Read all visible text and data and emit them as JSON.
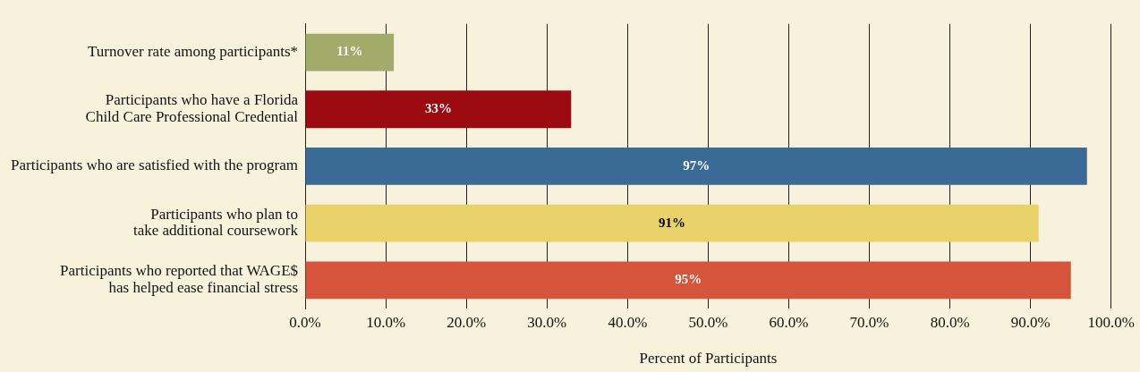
{
  "chart_data": {
    "type": "bar",
    "orientation": "horizontal",
    "xlabel": "Percent of Participants",
    "categories": [
      "Turnover rate among participants*",
      "Participants who have a Florida Child Care Professional Credential",
      "Participants who are satisfied with the program",
      "Participants who plan to take additional coursework",
      "Participants who reported that WAGE$ has helped ease financial stress"
    ],
    "values": [
      11,
      33,
      97,
      91,
      95
    ],
    "colors": [
      "#a3ab6a",
      "#9b0a10",
      "#3a6b96",
      "#ead26a",
      "#d6543c"
    ],
    "value_labels": [
      "11%",
      "33%",
      "97%",
      "91%",
      "95%"
    ],
    "xlim": [
      0,
      100
    ],
    "xticks": [
      {
        "value": 0,
        "label": "0.0%"
      },
      {
        "value": 10,
        "label": "10.0%"
      },
      {
        "value": 20,
        "label": "20.0%"
      },
      {
        "value": 30,
        "label": "30.0%"
      },
      {
        "value": 40,
        "label": "40.0%"
      },
      {
        "value": 50,
        "label": "50.0%"
      },
      {
        "value": 60,
        "label": "60.0%"
      },
      {
        "value": 70,
        "label": "70.0%"
      },
      {
        "value": 80,
        "label": "80.0%"
      },
      {
        "value": 90,
        "label": "90.0%"
      },
      {
        "value": 100,
        "label": "100.0%"
      }
    ],
    "grid": "x",
    "legend": false
  }
}
